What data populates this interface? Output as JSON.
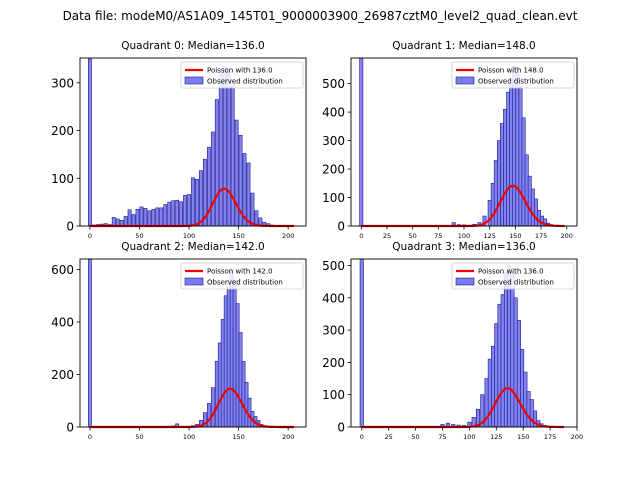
{
  "figure": {
    "suptitle": "Data file: modeM0/AS1A09_145T01_9000003900_26987cztM0_level2_quad_clean.evt"
  },
  "colors": {
    "bar_fill": "#7b7bf0",
    "bar_edge": "#1a1a8c",
    "poisson_line": "#ee0000",
    "axes": "#000000"
  },
  "legend": {
    "observed_label": "Observed distribution"
  },
  "chart_data": [
    {
      "type": "bar",
      "title": "Quadrant 0: Median=136.0",
      "xlim": [
        -10,
        218
      ],
      "ylim": [
        0,
        352
      ],
      "xticks": [
        0,
        50,
        100,
        150,
        200
      ],
      "yticks": [
        0,
        100,
        200,
        300
      ],
      "legend": "top-right",
      "poisson_label": "Poisson with 136.0",
      "poisson_mean": 136,
      "poisson_scale": 2280,
      "bins": [
        {
          "x": 0,
          "y": 350
        },
        {
          "x": 4,
          "y": 2
        },
        {
          "x": 8,
          "y": 3
        },
        {
          "x": 12,
          "y": 4
        },
        {
          "x": 16,
          "y": 5
        },
        {
          "x": 20,
          "y": 3
        },
        {
          "x": 24,
          "y": 18
        },
        {
          "x": 28,
          "y": 15
        },
        {
          "x": 32,
          "y": 12
        },
        {
          "x": 36,
          "y": 20
        },
        {
          "x": 40,
          "y": 34
        },
        {
          "x": 44,
          "y": 24
        },
        {
          "x": 48,
          "y": 35
        },
        {
          "x": 52,
          "y": 40
        },
        {
          "x": 56,
          "y": 37
        },
        {
          "x": 60,
          "y": 32
        },
        {
          "x": 64,
          "y": 35
        },
        {
          "x": 68,
          "y": 38
        },
        {
          "x": 72,
          "y": 38
        },
        {
          "x": 76,
          "y": 45
        },
        {
          "x": 80,
          "y": 50
        },
        {
          "x": 84,
          "y": 53
        },
        {
          "x": 88,
          "y": 54
        },
        {
          "x": 92,
          "y": 51
        },
        {
          "x": 96,
          "y": 64
        },
        {
          "x": 100,
          "y": 66
        },
        {
          "x": 104,
          "y": 101
        },
        {
          "x": 108,
          "y": 98
        },
        {
          "x": 112,
          "y": 116
        },
        {
          "x": 116,
          "y": 140
        },
        {
          "x": 120,
          "y": 165
        },
        {
          "x": 124,
          "y": 197
        },
        {
          "x": 128,
          "y": 265
        },
        {
          "x": 132,
          "y": 318
        },
        {
          "x": 136,
          "y": 333
        },
        {
          "x": 140,
          "y": 322
        },
        {
          "x": 144,
          "y": 294
        },
        {
          "x": 148,
          "y": 222
        },
        {
          "x": 152,
          "y": 190
        },
        {
          "x": 156,
          "y": 152
        },
        {
          "x": 160,
          "y": 132
        },
        {
          "x": 164,
          "y": 69
        },
        {
          "x": 168,
          "y": 32
        },
        {
          "x": 172,
          "y": 17
        },
        {
          "x": 176,
          "y": 8
        },
        {
          "x": 180,
          "y": 5
        },
        {
          "x": 184,
          "y": 2
        },
        {
          "x": 188,
          "y": 1
        }
      ]
    },
    {
      "type": "bar",
      "title": "Quadrant 1: Median=148.0",
      "xlim": [
        -10,
        210
      ],
      "ylim": [
        0,
        590
      ],
      "xticks": [
        0,
        25,
        50,
        75,
        100,
        125,
        150,
        175,
        200
      ],
      "yticks": [
        0,
        100,
        200,
        300,
        400,
        500
      ],
      "legend": "top-right",
      "poisson_label": "Poisson with 148.0",
      "poisson_mean": 148,
      "poisson_scale": 4300,
      "bins": [
        {
          "x": 0,
          "y": 590
        },
        {
          "x": 90,
          "y": 12
        },
        {
          "x": 95,
          "y": 5
        },
        {
          "x": 100,
          "y": 4
        },
        {
          "x": 105,
          "y": 3
        },
        {
          "x": 110,
          "y": 6
        },
        {
          "x": 115,
          "y": 12
        },
        {
          "x": 120,
          "y": 35
        },
        {
          "x": 125,
          "y": 90
        },
        {
          "x": 128,
          "y": 150
        },
        {
          "x": 131,
          "y": 230
        },
        {
          "x": 134,
          "y": 300
        },
        {
          "x": 137,
          "y": 360
        },
        {
          "x": 140,
          "y": 410
        },
        {
          "x": 143,
          "y": 470
        },
        {
          "x": 146,
          "y": 500
        },
        {
          "x": 149,
          "y": 560
        },
        {
          "x": 152,
          "y": 540
        },
        {
          "x": 155,
          "y": 490
        },
        {
          "x": 158,
          "y": 380
        },
        {
          "x": 161,
          "y": 250
        },
        {
          "x": 164,
          "y": 175
        },
        {
          "x": 167,
          "y": 130
        },
        {
          "x": 170,
          "y": 95
        },
        {
          "x": 173,
          "y": 55
        },
        {
          "x": 176,
          "y": 35
        },
        {
          "x": 179,
          "y": 25
        },
        {
          "x": 182,
          "y": 10
        },
        {
          "x": 185,
          "y": 5
        },
        {
          "x": 188,
          "y": 2
        }
      ]
    },
    {
      "type": "bar",
      "title": "Quadrant 2: Median=142.0",
      "xlim": [
        -10,
        218
      ],
      "ylim": [
        0,
        640
      ],
      "xticks": [
        0,
        50,
        100,
        150,
        200
      ],
      "yticks": [
        0,
        200,
        400,
        600
      ],
      "legend": "top-right",
      "poisson_label": "Poisson with 142.0",
      "poisson_mean": 142,
      "poisson_scale": 4350,
      "bins": [
        {
          "x": 0,
          "y": 640
        },
        {
          "x": 80,
          "y": 3
        },
        {
          "x": 84,
          "y": 4
        },
        {
          "x": 88,
          "y": 12
        },
        {
          "x": 92,
          "y": 3
        },
        {
          "x": 96,
          "y": 2
        },
        {
          "x": 100,
          "y": 3
        },
        {
          "x": 104,
          "y": 5
        },
        {
          "x": 108,
          "y": 10
        },
        {
          "x": 112,
          "y": 25
        },
        {
          "x": 116,
          "y": 55
        },
        {
          "x": 120,
          "y": 90
        },
        {
          "x": 124,
          "y": 150
        },
        {
          "x": 128,
          "y": 250
        },
        {
          "x": 131,
          "y": 320
        },
        {
          "x": 134,
          "y": 410
        },
        {
          "x": 137,
          "y": 500
        },
        {
          "x": 140,
          "y": 560
        },
        {
          "x": 143,
          "y": 600
        },
        {
          "x": 146,
          "y": 560
        },
        {
          "x": 149,
          "y": 470
        },
        {
          "x": 152,
          "y": 360
        },
        {
          "x": 155,
          "y": 250
        },
        {
          "x": 158,
          "y": 170
        },
        {
          "x": 161,
          "y": 110
        },
        {
          "x": 164,
          "y": 60
        },
        {
          "x": 167,
          "y": 40
        },
        {
          "x": 170,
          "y": 25
        },
        {
          "x": 173,
          "y": 10
        },
        {
          "x": 176,
          "y": 5
        },
        {
          "x": 179,
          "y": 2
        }
      ]
    },
    {
      "type": "bar",
      "title": "Quadrant 3: Median=136.0",
      "xlim": [
        -10,
        200
      ],
      "ylim": [
        0,
        520
      ],
      "xticks": [
        0,
        25,
        50,
        75,
        100,
        125,
        150,
        175,
        200
      ],
      "yticks": [
        0,
        100,
        200,
        300,
        400,
        500
      ],
      "legend": "top-right",
      "poisson_label": "Poisson with 136.0",
      "poisson_mean": 136,
      "poisson_scale": 3500,
      "bins": [
        {
          "x": 0,
          "y": 520
        },
        {
          "x": 75,
          "y": 8
        },
        {
          "x": 80,
          "y": 12
        },
        {
          "x": 85,
          "y": 8
        },
        {
          "x": 90,
          "y": 6
        },
        {
          "x": 95,
          "y": 5
        },
        {
          "x": 100,
          "y": 15
        },
        {
          "x": 104,
          "y": 30
        },
        {
          "x": 108,
          "y": 55
        },
        {
          "x": 112,
          "y": 100
        },
        {
          "x": 116,
          "y": 150
        },
        {
          "x": 119,
          "y": 210
        },
        {
          "x": 122,
          "y": 250
        },
        {
          "x": 125,
          "y": 320
        },
        {
          "x": 128,
          "y": 380
        },
        {
          "x": 131,
          "y": 410
        },
        {
          "x": 134,
          "y": 480
        },
        {
          "x": 137,
          "y": 500
        },
        {
          "x": 140,
          "y": 480
        },
        {
          "x": 143,
          "y": 400
        },
        {
          "x": 146,
          "y": 330
        },
        {
          "x": 149,
          "y": 240
        },
        {
          "x": 152,
          "y": 170
        },
        {
          "x": 155,
          "y": 110
        },
        {
          "x": 158,
          "y": 85
        },
        {
          "x": 161,
          "y": 50
        },
        {
          "x": 164,
          "y": 20
        },
        {
          "x": 167,
          "y": 10
        },
        {
          "x": 170,
          "y": 5
        },
        {
          "x": 173,
          "y": 2
        }
      ]
    }
  ]
}
